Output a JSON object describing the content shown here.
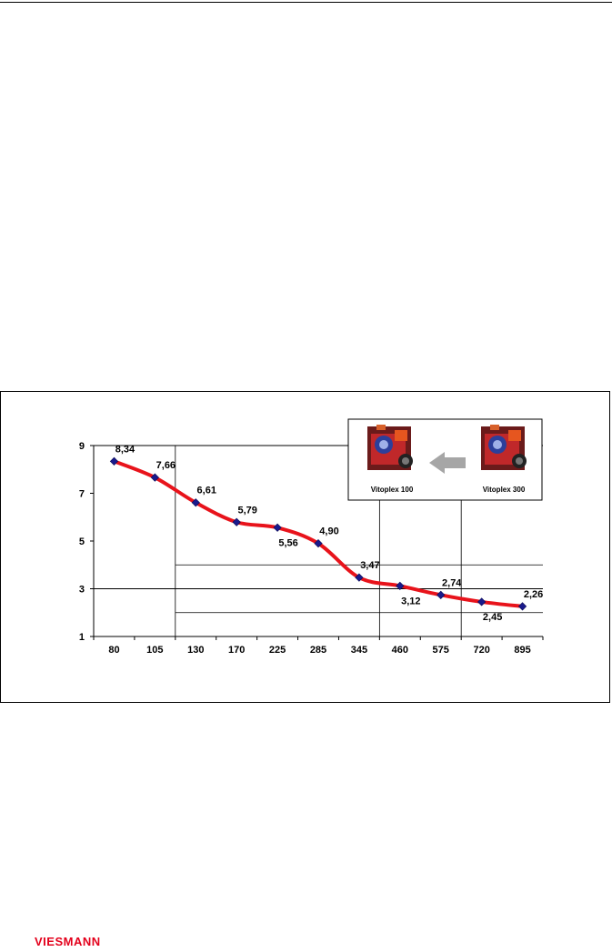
{
  "chart_data": {
    "type": "line",
    "categories": [
      "80",
      "105",
      "130",
      "170",
      "225",
      "285",
      "345",
      "460",
      "575",
      "720",
      "895"
    ],
    "values": [
      8.34,
      7.66,
      6.61,
      5.79,
      5.56,
      4.9,
      3.47,
      3.12,
      2.74,
      2.45,
      2.26
    ],
    "data_labels": [
      "8,34",
      "7,66",
      "6,61",
      "5,79",
      "5,56",
      "4,90",
      "3,47",
      "3,12",
      "2,74",
      "2,45",
      "2,26"
    ],
    "y_ticks": [
      "1",
      "3",
      "5",
      "7",
      "9"
    ],
    "ylim": [
      1,
      9
    ],
    "title": "",
    "xlabel": "",
    "ylabel": "",
    "grid": "partial",
    "colors": {
      "line": "#e8131b",
      "marker": "#1a1a8c"
    }
  },
  "inset": {
    "left_product": "Vitoplex 100",
    "right_product": "Vitoplex 300",
    "arrow_color": "#a6a6a6"
  },
  "logo": {
    "text": "VIESMANN",
    "color": "#e3001b"
  }
}
